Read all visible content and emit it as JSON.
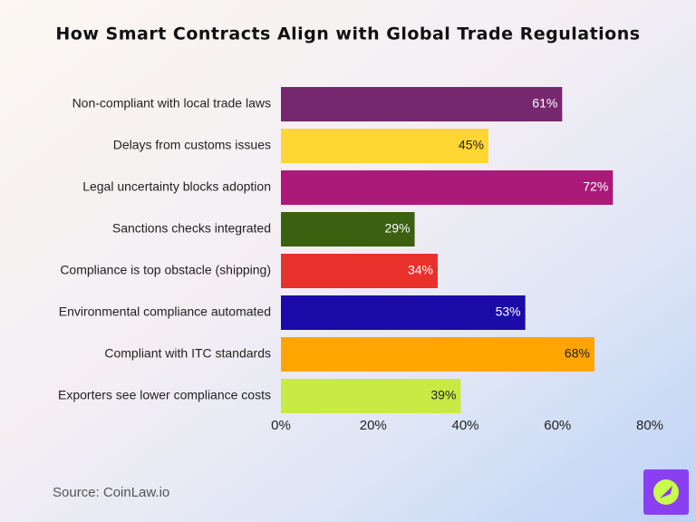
{
  "chart_data": {
    "type": "hbar",
    "title": "How Smart Contracts Align with Global Trade Regulations",
    "categories": [
      "Non-compliant with local trade laws",
      "Delays from customs issues",
      "Legal uncertainty blocks adoption",
      "Sanctions checks integrated",
      "Compliance is top obstacle (shipping)",
      "Environmental compliance automated",
      "Compliant with ITC standards",
      "Exporters see lower compliance costs"
    ],
    "values": [
      61,
      45,
      72,
      29,
      34,
      53,
      68,
      39
    ],
    "value_labels": [
      "61%",
      "45%",
      "72%",
      "29%",
      "34%",
      "53%",
      "68%",
      "39%"
    ],
    "colors": [
      "#76286e",
      "#ffd632",
      "#ab1a78",
      "#3a6010",
      "#e8312a",
      "#1a0aa8",
      "#ffa500",
      "#c8ea45"
    ],
    "xlim": [
      0,
      80
    ],
    "xticks": [
      {
        "value": 0,
        "label": "0%"
      },
      {
        "value": 20,
        "label": "20%"
      },
      {
        "value": 40,
        "label": "40%"
      },
      {
        "value": 60,
        "label": "60%"
      },
      {
        "value": 80,
        "label": "80%"
      }
    ],
    "source": "Source: CoinLaw.io"
  }
}
